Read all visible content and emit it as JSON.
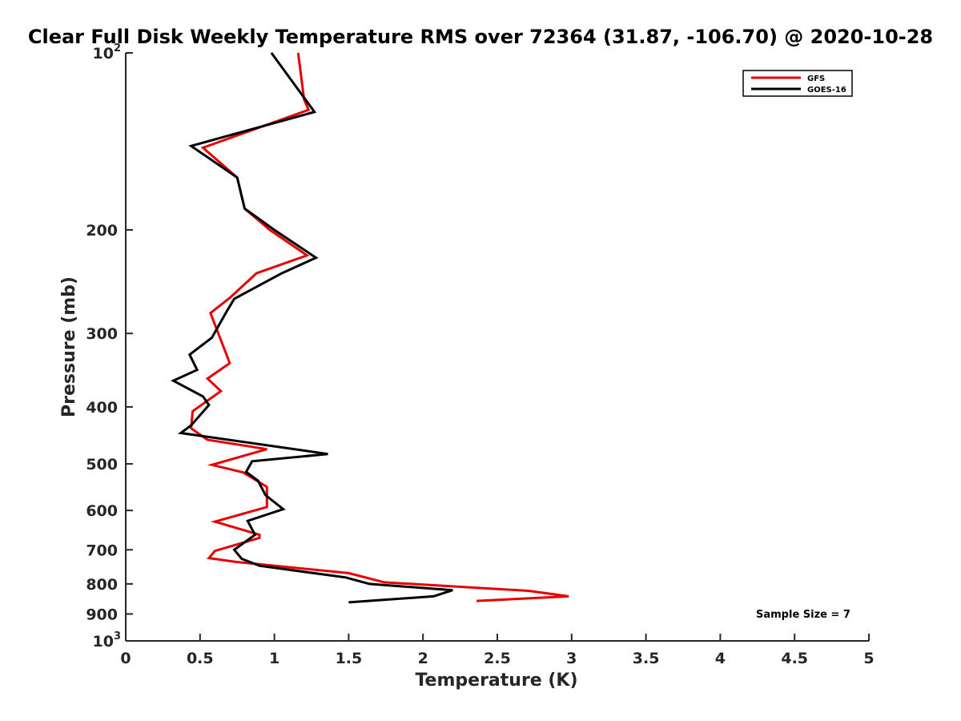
{
  "chart_data": {
    "type": "line",
    "title": "Clear Full Disk Weekly Temperature RMS over 72364 (31.87, -106.70) @ 2020-10-28",
    "xlabel": "Temperature (K)",
    "ylabel": "Pressure (mb)",
    "xlim": [
      0,
      5
    ],
    "ylim": [
      100,
      1000
    ],
    "y_scale": "log",
    "y_reversed": true,
    "grid": false,
    "legend_position": "top-right",
    "x_ticks": [
      {
        "value": 0,
        "label": "0"
      },
      {
        "value": 0.5,
        "label": "0.5"
      },
      {
        "value": 1,
        "label": "1"
      },
      {
        "value": 1.5,
        "label": "1.5"
      },
      {
        "value": 2,
        "label": "2"
      },
      {
        "value": 2.5,
        "label": "2.5"
      },
      {
        "value": 3,
        "label": "3"
      },
      {
        "value": 3.5,
        "label": "3.5"
      },
      {
        "value": 4,
        "label": "4"
      },
      {
        "value": 4.5,
        "label": "4.5"
      },
      {
        "value": 5,
        "label": "5"
      }
    ],
    "y_ticks": [
      {
        "value": 100,
        "label": "10",
        "sup": "2"
      },
      {
        "value": 200,
        "label": "200"
      },
      {
        "value": 300,
        "label": "300"
      },
      {
        "value": 400,
        "label": "400"
      },
      {
        "value": 500,
        "label": "500"
      },
      {
        "value": 600,
        "label": "600"
      },
      {
        "value": 700,
        "label": "700"
      },
      {
        "value": 800,
        "label": "800"
      },
      {
        "value": 900,
        "label": "900"
      },
      {
        "value": 1000,
        "label": "10",
        "sup": "3"
      }
    ],
    "annotations": [
      {
        "text": "Sample Size = 7"
      }
    ],
    "series": [
      {
        "name": "GFS",
        "color": "#e60000",
        "points": [
          [
            1.16,
            100
          ],
          [
            1.2,
            120
          ],
          [
            1.23,
            125
          ],
          [
            0.52,
            145
          ],
          [
            0.75,
            163
          ],
          [
            0.8,
            184
          ],
          [
            0.97,
            200
          ],
          [
            1.22,
            221
          ],
          [
            0.88,
            237
          ],
          [
            0.7,
            261
          ],
          [
            0.57,
            277
          ],
          [
            0.7,
            337
          ],
          [
            0.55,
            358
          ],
          [
            0.64,
            376
          ],
          [
            0.45,
            407
          ],
          [
            0.44,
            435
          ],
          [
            0.55,
            455
          ],
          [
            0.95,
            472
          ],
          [
            0.58,
            502
          ],
          [
            0.79,
            517
          ],
          [
            0.95,
            547
          ],
          [
            0.95,
            592
          ],
          [
            0.6,
            627
          ],
          [
            0.9,
            660
          ],
          [
            0.9,
            668
          ],
          [
            0.6,
            703
          ],
          [
            0.56,
            723
          ],
          [
            0.74,
            734
          ],
          [
            1.5,
            767
          ],
          [
            1.74,
            795
          ],
          [
            2.71,
            822
          ],
          [
            2.98,
            840
          ],
          [
            2.36,
            855
          ]
        ]
      },
      {
        "name": "GOES-16",
        "color": "#000000",
        "points": [
          [
            0.98,
            100
          ],
          [
            1.27,
            126
          ],
          [
            0.44,
            144
          ],
          [
            0.75,
            163
          ],
          [
            0.8,
            184
          ],
          [
            1.0,
            200
          ],
          [
            1.28,
            223
          ],
          [
            1.05,
            237
          ],
          [
            0.73,
            262
          ],
          [
            0.68,
            275
          ],
          [
            0.58,
            305
          ],
          [
            0.43,
            326
          ],
          [
            0.48,
            346
          ],
          [
            0.32,
            361
          ],
          [
            0.52,
            384
          ],
          [
            0.56,
            397
          ],
          [
            0.44,
            430
          ],
          [
            0.37,
            443
          ],
          [
            1.36,
            481
          ],
          [
            0.85,
            495
          ],
          [
            0.81,
            516
          ],
          [
            0.89,
            534
          ],
          [
            0.94,
            565
          ],
          [
            1.06,
            597
          ],
          [
            0.82,
            625
          ],
          [
            0.87,
            660
          ],
          [
            0.73,
            700
          ],
          [
            0.78,
            725
          ],
          [
            0.9,
            745
          ],
          [
            1.48,
            780
          ],
          [
            1.64,
            800
          ],
          [
            2.2,
            820
          ],
          [
            2.07,
            840
          ],
          [
            1.5,
            860
          ]
        ]
      }
    ]
  }
}
